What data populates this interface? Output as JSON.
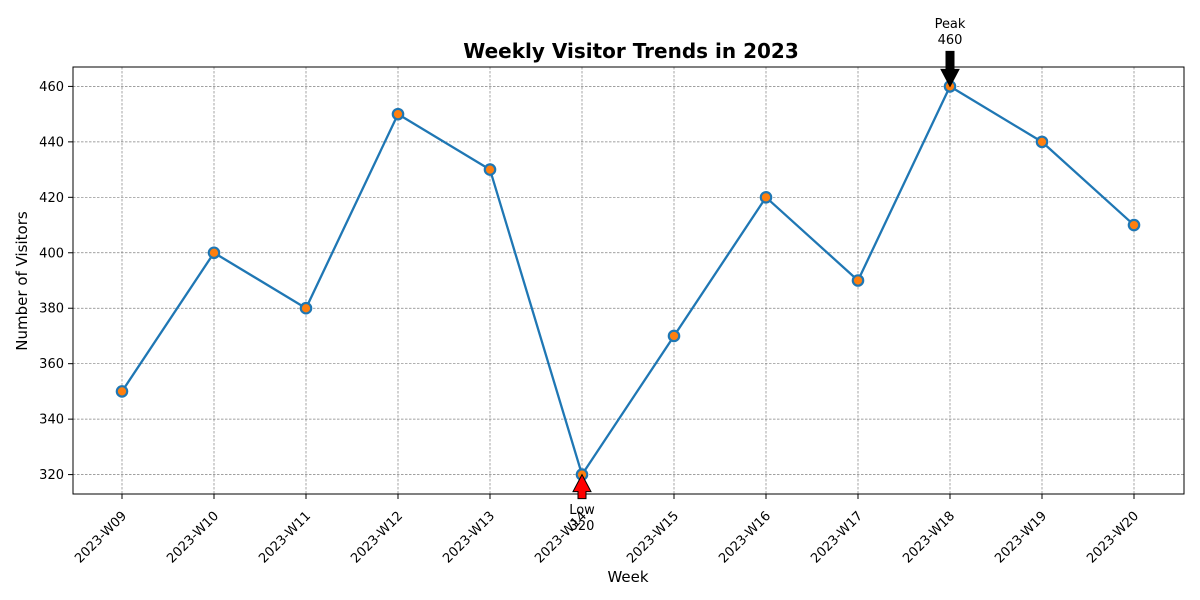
{
  "chart_data": {
    "type": "line",
    "title": "Weekly Visitor Trends in 2023",
    "xlabel": "Week",
    "ylabel": "Number of Visitors",
    "categories": [
      "2023-W09",
      "2023-W10",
      "2023-W11",
      "2023-W12",
      "2023-W13",
      "2023-W14",
      "2023-W15",
      "2023-W16",
      "2023-W17",
      "2023-W18",
      "2023-W19",
      "2023-W20"
    ],
    "series": [
      {
        "values": [
          350,
          400,
          380,
          450,
          430,
          320,
          370,
          420,
          390,
          460,
          440,
          410
        ]
      }
    ],
    "ylim": [
      313,
      467
    ],
    "yticks": [
      320,
      340,
      360,
      380,
      400,
      420,
      440,
      460
    ],
    "grid": true,
    "line_color": "#1f77b4",
    "marker_color": "#ff7f0e",
    "annotations": [
      {
        "text_line1": "Peak",
        "text_line2": "460",
        "category": "2023-W18",
        "value": 460,
        "arrow_color": "#000000",
        "position": "above"
      },
      {
        "text_line1": "Low",
        "text_line2": "320",
        "category": "2023-W14",
        "value": 320,
        "arrow_color": "#ff0000",
        "position": "below"
      }
    ]
  }
}
